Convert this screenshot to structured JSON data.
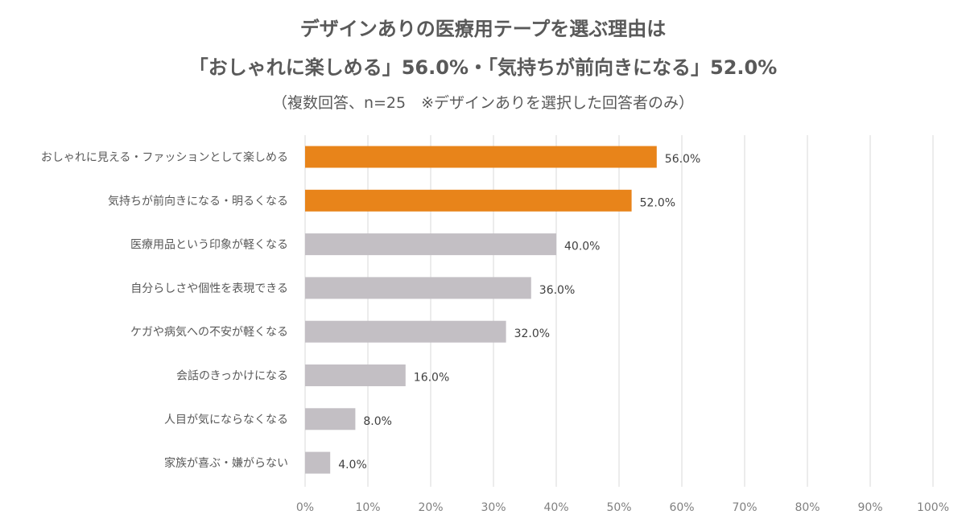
{
  "title": {
    "line1": "デザインありの医療用テープを選ぶ理由は",
    "line2": "「おしゃれに楽しめる」56.0%・「気持ちが前向きになる」52.0%",
    "subtitle": "（複数回答、n=25　※デザインありを選択した回答者のみ）"
  },
  "colors": {
    "highlight": "#E8841A",
    "default": "#C3BFC4",
    "grid": "#D9D9D9",
    "text": "#595959"
  },
  "chart_data": {
    "type": "bar",
    "orientation": "horizontal",
    "categories": [
      "おしゃれに見える・ファッションとして楽しめる",
      "気持ちが前向きになる・明るくなる",
      "医療用品という印象が軽くなる",
      "自分らしさや個性を表現できる",
      "ケガや病気への不安が軽くなる",
      "会話のきっかけになる",
      "人目が気にならなくなる",
      "家族が喜ぶ・嫌がらない"
    ],
    "values": [
      56.0,
      52.0,
      40.0,
      36.0,
      32.0,
      16.0,
      8.0,
      4.0
    ],
    "value_labels": [
      "56.0%",
      "52.0%",
      "40.0%",
      "36.0%",
      "32.0%",
      "16.0%",
      "8.0%",
      "4.0%"
    ],
    "highlighted": [
      true,
      true,
      false,
      false,
      false,
      false,
      false,
      false
    ],
    "xlim": [
      0,
      100
    ],
    "xticks": [
      "0%",
      "10%",
      "20%",
      "30%",
      "40%",
      "50%",
      "60%",
      "70%",
      "80%",
      "90%",
      "100%"
    ],
    "grid": true,
    "legend": false
  }
}
